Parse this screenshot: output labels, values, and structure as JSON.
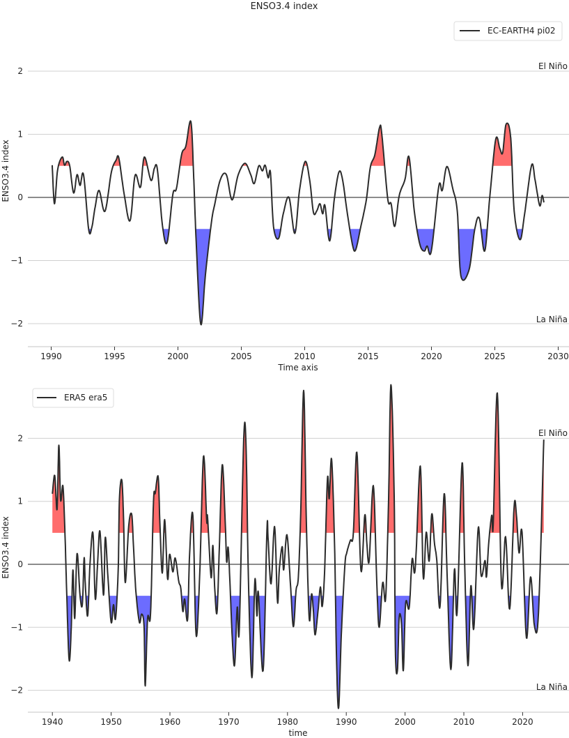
{
  "title": "ENSO3.4 index",
  "colors": {
    "line": "#2b2b2b",
    "el_nino_fill": "#ff6464",
    "la_nina_fill": "#6464ff",
    "el_nino_text": "#ff0000",
    "la_nina_text": "#0000ff",
    "grid": "#d0d0d0",
    "zero_line": "#666666"
  },
  "chart_data": [
    {
      "type": "line",
      "title": "ENSO3.4 index",
      "xlabel": "Time axis",
      "ylabel": "ENSO3.4 index",
      "xlim": [
        1988.2,
        2030.8
      ],
      "ylim": [
        -2.3,
        2.7
      ],
      "xticks": [
        "1990",
        "1995",
        "2000",
        "2005",
        "2010",
        "2015",
        "2020",
        "2025",
        "2030"
      ],
      "yticks": [
        "2",
        "1",
        "0",
        "−1",
        "−2"
      ],
      "grid": true,
      "legend": "top-right",
      "thresholds": [
        0.5,
        -0.5
      ],
      "annotations": {
        "el_nino": "El Niño",
        "la_nina": "La Niña"
      },
      "series": [
        {
          "name": "EC-EARTH4 pi02",
          "x": [
            1990.08,
            1990.26,
            1990.51,
            1990.87,
            1991.05,
            1991.24,
            1991.46,
            1991.77,
            1992.04,
            1992.28,
            1992.55,
            1992.96,
            1993.2,
            1993.47,
            1993.78,
            1994.24,
            1994.75,
            1995.12,
            1995.34,
            1995.76,
            1996.22,
            1996.62,
            1997.04,
            1997.35,
            1997.87,
            1998.14,
            1998.38,
            1998.78,
            1999.15,
            1999.6,
            1999.88,
            2000.29,
            2000.62,
            2001.02,
            2001.25,
            2001.44,
            2001.8,
            2002.17,
            2002.63,
            2002.9,
            2003.36,
            2003.82,
            2004.27,
            2004.74,
            2005.29,
            2005.74,
            2006.02,
            2006.38,
            2006.66,
            2006.88,
            2007.12,
            2007.3,
            2007.54,
            2007.94,
            2008.31,
            2008.76,
            2009.22,
            2009.59,
            2010.04,
            2010.41,
            2010.69,
            2010.96,
            2011.2,
            2011.42,
            2011.6,
            2011.97,
            2012.34,
            2012.7,
            2012.98,
            2013.34,
            2013.76,
            2014.02,
            2014.44,
            2014.86,
            2015.18,
            2015.54,
            2015.91,
            2016.09,
            2016.55,
            2016.82,
            2017.1,
            2017.46,
            2017.92,
            2018.23,
            2018.65,
            2019.08,
            2019.44,
            2019.66,
            2019.99,
            2020.58,
            2020.85,
            2021.22,
            2021.68,
            2022.04,
            2022.32,
            2022.96,
            2023.42,
            2023.78,
            2024.2,
            2024.6,
            2025.07,
            2025.4,
            2025.62,
            2025.89,
            2026.25,
            2026.53,
            2026.99,
            2027.35,
            2027.9,
            2028.18,
            2028.54,
            2028.73,
            2028.87
          ],
          "y": [
            0.51,
            -0.1,
            0.44,
            0.64,
            0.51,
            0.57,
            0.5,
            0.07,
            0.36,
            0.19,
            0.36,
            -0.51,
            -0.48,
            -0.15,
            0.11,
            -0.22,
            0.4,
            0.59,
            0.62,
            0.05,
            -0.37,
            0.35,
            0.16,
            0.64,
            0.27,
            0.46,
            0.44,
            -0.45,
            -0.71,
            0.05,
            0.14,
            0.68,
            0.81,
            1.2,
            0.29,
            -0.7,
            -2.01,
            -1.22,
            -0.41,
            -0.11,
            0.29,
            0.36,
            -0.04,
            0.35,
            0.54,
            0.36,
            0.22,
            0.5,
            0.42,
            0.51,
            0.31,
            0.39,
            -0.46,
            -0.65,
            -0.26,
            0.0,
            -0.57,
            0.11,
            0.57,
            0.25,
            -0.24,
            -0.21,
            -0.1,
            -0.26,
            -0.13,
            -0.69,
            -0.02,
            0.4,
            0.29,
            -0.22,
            -0.74,
            -0.83,
            -0.45,
            -0.04,
            0.48,
            0.68,
            1.11,
            0.99,
            -0.02,
            -0.1,
            -0.46,
            0.03,
            0.29,
            0.64,
            -0.22,
            -0.74,
            -0.85,
            -0.77,
            -0.85,
            0.18,
            0.11,
            0.49,
            0.14,
            -0.22,
            -1.24,
            -1.15,
            -0.5,
            -0.33,
            -0.85,
            0.0,
            0.92,
            0.77,
            0.71,
            1.16,
            0.95,
            -0.22,
            -0.67,
            -0.26,
            0.51,
            0.27,
            -0.13,
            0.03,
            -0.08
          ]
        }
      ]
    },
    {
      "type": "line",
      "xlabel": "time",
      "ylabel": "ENSO3.4 index",
      "xlim": [
        1935.8,
        2027.9
      ],
      "ylim": [
        -2.3,
        2.85
      ],
      "xticks": [
        "1940",
        "1950",
        "1960",
        "1970",
        "1980",
        "1990",
        "2000",
        "2010",
        "2020"
      ],
      "yticks": [
        "2",
        "1",
        "0",
        "−1",
        "−2"
      ],
      "grid": true,
      "legend": "top-left",
      "thresholds": [
        0.5,
        -0.5
      ],
      "annotations": {
        "el_nino": "El Niño",
        "la_nina": "La Niña"
      },
      "series": [
        {
          "name": "ERA5 era5",
          "x": [
            1940.0,
            1940.4,
            1940.8,
            1941.1,
            1941.4,
            1941.8,
            1942.15,
            1942.45,
            1942.85,
            1943.2,
            1943.5,
            1943.8,
            1944.2,
            1944.7,
            1945.1,
            1945.4,
            1945.6,
            1946.0,
            1946.4,
            1946.9,
            1947.3,
            1947.7,
            1948.1,
            1948.7,
            1949.0,
            1949.45,
            1950.0,
            1950.4,
            1950.75,
            1951.2,
            1951.4,
            1951.8,
            1952.1,
            1952.4,
            1953.0,
            1953.5,
            1953.8,
            1954.2,
            1954.8,
            1955.2,
            1955.6,
            1955.8,
            1956.2,
            1956.7,
            1957.2,
            1957.5,
            1958.0,
            1958.3,
            1958.7,
            1959.1,
            1959.6,
            1959.95,
            1960.5,
            1960.9,
            1961.5,
            1961.85,
            1962.2,
            1962.5,
            1963.0,
            1963.35,
            1963.9,
            1964.45,
            1965.05,
            1965.7,
            1966.25,
            1966.4,
            1967.0,
            1967.3,
            1967.6,
            1968.0,
            1968.4,
            1968.9,
            1969.4,
            1969.65,
            1969.9,
            1970.2,
            1970.6,
            1971.0,
            1971.45,
            1971.8,
            1972.55,
            1972.95,
            1973.35,
            1973.95,
            1974.45,
            1974.8,
            1975.05,
            1975.85,
            1976.5,
            1976.7,
            1977.2,
            1977.8,
            1978.3,
            1978.6,
            1979.1,
            1979.35,
            1979.9,
            1980.5,
            1981.0,
            1981.45,
            1981.85,
            1982.25,
            1982.75,
            1983.2,
            1983.7,
            1984.1,
            1984.4,
            1984.7,
            1985.2,
            1985.6,
            1985.9,
            1986.3,
            1986.8,
            1987.1,
            1987.5,
            1988.0,
            1988.35,
            1988.7,
            1989.15,
            1989.75,
            1990.1,
            1990.7,
            1991.2,
            1991.8,
            1992.5,
            1993.15,
            1993.5,
            1993.9,
            1994.6,
            1995.2,
            1995.6,
            1996.2,
            1996.7,
            1997.2,
            1997.6,
            1998.15,
            1998.35,
            1998.7,
            1999.0,
            1999.4,
            1999.7,
            2000.1,
            2000.7,
            2001.2,
            2001.6,
            2001.9,
            2002.6,
            2003.1,
            2003.6,
            2004.1,
            2004.55,
            2005.0,
            2005.4,
            2005.95,
            2006.65,
            2007.15,
            2007.8,
            2008.4,
            2008.85,
            2009.7,
            2010.15,
            2010.7,
            2011.2,
            2011.7,
            2012.45,
            2012.95,
            2013.6,
            2013.85,
            2014.25,
            2014.75,
            2015.0,
            2015.7,
            2016.4,
            2017.1,
            2017.8,
            2018.55,
            2018.95,
            2019.4,
            2019.9,
            2020.65,
            2021.35,
            2022.0,
            2022.7,
            2023.6
          ],
          "y": [
            1.12,
            1.41,
            0.87,
            1.89,
            1.02,
            1.24,
            0.47,
            -0.49,
            -1.52,
            -1.04,
            -0.09,
            -0.86,
            0.17,
            -0.49,
            -0.64,
            0.1,
            -0.31,
            -0.82,
            0.0,
            0.5,
            -0.55,
            0.03,
            0.52,
            -0.49,
            0.43,
            -0.2,
            -0.92,
            -0.64,
            -0.86,
            -0.09,
            1.02,
            1.34,
            0.76,
            -0.29,
            0.62,
            0.79,
            0.28,
            -0.42,
            -0.92,
            -0.79,
            -0.99,
            -1.93,
            -0.86,
            -0.79,
            0.99,
            1.13,
            1.39,
            0.62,
            -0.14,
            0.71,
            -0.23,
            0.16,
            -0.12,
            0.1,
            -0.27,
            -0.38,
            -0.75,
            -0.55,
            -0.88,
            0.17,
            0.78,
            -1.12,
            -0.2,
            1.71,
            0.69,
            0.75,
            -0.21,
            0.3,
            -0.34,
            -0.77,
            0.25,
            1.58,
            0.69,
            0.04,
            0.27,
            -0.27,
            -1.16,
            -1.6,
            -0.68,
            -1.03,
            1.98,
            1.87,
            -0.23,
            -1.8,
            -0.25,
            -0.82,
            -0.45,
            -1.69,
            0.54,
            0.41,
            -0.31,
            0.6,
            -0.6,
            -0.09,
            0.28,
            -0.09,
            0.47,
            -0.31,
            -0.99,
            -0.42,
            -0.2,
            0.82,
            2.76,
            0.71,
            -0.86,
            -0.47,
            -0.73,
            -1.12,
            -0.73,
            -0.36,
            -0.67,
            -0.14,
            1.36,
            1.04,
            1.67,
            0.34,
            -1.54,
            -2.28,
            -1.13,
            -0.03,
            0.19,
            0.38,
            0.49,
            1.78,
            -0.1,
            0.78,
            0.34,
            0.06,
            1.25,
            -0.32,
            -1.0,
            -0.29,
            -0.54,
            1.04,
            2.85,
            1.08,
            -1.34,
            -1.69,
            -0.84,
            -0.95,
            -1.69,
            -0.62,
            -0.69,
            0.08,
            -0.14,
            0.21,
            1.56,
            -0.21,
            0.51,
            0.05,
            0.8,
            0.34,
            0.06,
            -0.67,
            1.12,
            -0.14,
            -1.67,
            -0.08,
            -0.77,
            1.61,
            -0.03,
            -1.61,
            -0.34,
            -1.02,
            0.58,
            -0.18,
            0.06,
            -0.2,
            0.36,
            0.78,
            0.62,
            2.72,
            -0.32,
            0.44,
            -0.71,
            0.91,
            0.78,
            0.18,
            0.51,
            -1.17,
            -0.2,
            -0.97,
            -0.77,
            1.98
          ]
        }
      ]
    }
  ]
}
